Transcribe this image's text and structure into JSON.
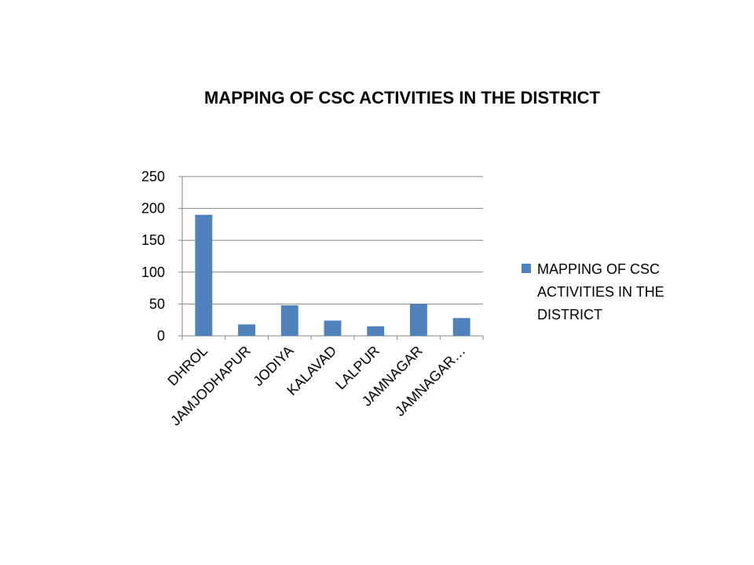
{
  "chart_data": {
    "type": "bar",
    "title": "MAPPING OF CSC ACTIVITIES IN THE DISTRICT",
    "categories": [
      "DHROL",
      "JAMJODHAPUR",
      "JODIYA",
      "KALAVAD",
      "LALPUR",
      "JAMNAGAR",
      "JAMNAGAR…"
    ],
    "series": [
      {
        "name": "MAPPING OF CSC ACTIVITIES IN THE DISTRICT",
        "values": [
          190,
          18,
          48,
          24,
          15,
          50,
          28
        ],
        "color": "#4f81bd"
      }
    ],
    "ylim": [
      0,
      250
    ],
    "yticks": [
      "0",
      "50",
      "100",
      "150",
      "200",
      "250"
    ],
    "grid": true,
    "legend": {
      "position": "right",
      "lines": [
        "MAPPING OF CSC",
        "ACTIVITIES IN THE",
        "DISTRICT"
      ]
    }
  }
}
